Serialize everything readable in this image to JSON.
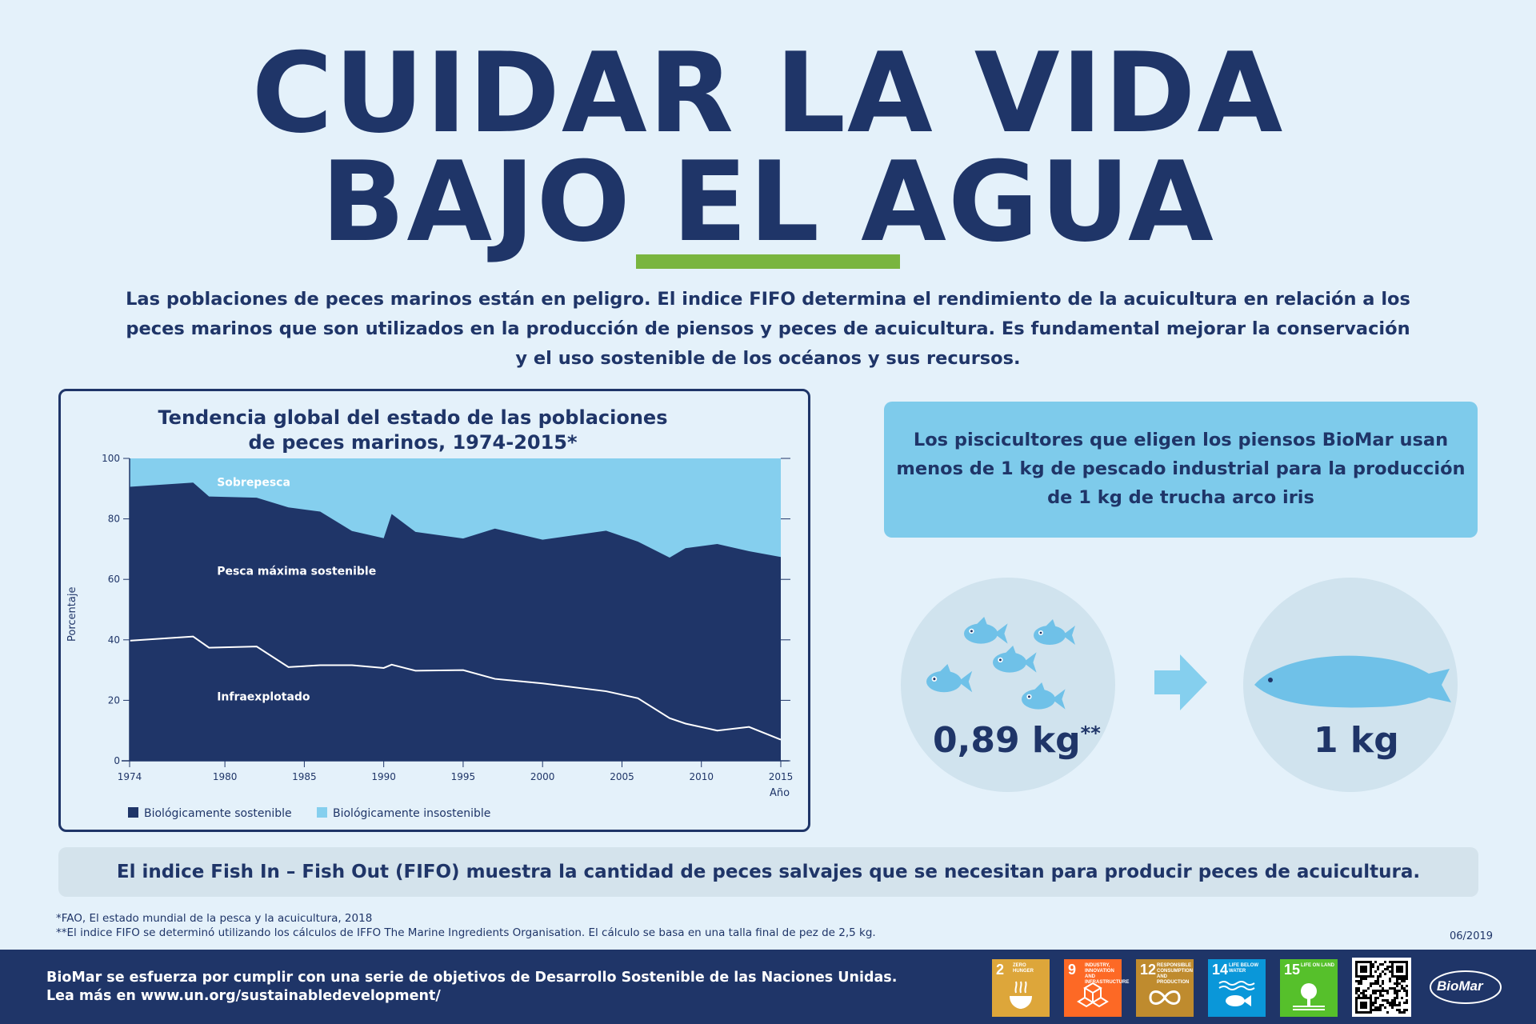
{
  "header": {
    "title_line1": "CUIDAR LA VIDA",
    "title_line2": "BAJO EL AGUA",
    "accent_color": "#79b53f"
  },
  "intro": {
    "text": "Las poblaciones de peces marinos están en peligro. El indice FIFO determina el rendimiento de la acuicultura en relación a los peces marinos que son utilizados en la producción de piensos y peces de acuicultura. Es fundamental mejorar la conservación y el uso sostenible de los océanos y sus recursos."
  },
  "chart_data": {
    "type": "area",
    "title": "Tendencia global del estado de las poblaciones de peces marinos, 1974-2015*",
    "title_line1": "Tendencia global del estado de las poblaciones",
    "title_line2": "de peces marinos, 1974-2015*",
    "xlabel": "Año",
    "ylabel": "Porcentaje",
    "xlim": [
      1974,
      2015
    ],
    "ylim": [
      0,
      100
    ],
    "x_ticks": [
      "1974",
      "1980",
      "1985",
      "1990",
      "1995",
      "2000",
      "2005",
      "2010",
      "2015"
    ],
    "y_ticks": [
      "0",
      "20",
      "40",
      "60",
      "80",
      "100"
    ],
    "x": [
      1974,
      1978,
      1979,
      1982,
      1984,
      1986,
      1988,
      1990,
      1990.5,
      1992,
      1995,
      1997,
      2000,
      2004,
      2006,
      2008,
      2009,
      2011,
      2013,
      2015
    ],
    "sustainable": [
      90.6,
      92.0,
      87.4,
      87.0,
      83.8,
      82.4,
      76.0,
      73.6,
      81.6,
      75.7,
      73.5,
      76.8,
      73.1,
      76.1,
      72.5,
      67.2,
      70.3,
      71.7,
      69.3,
      67.4
    ],
    "underexploited": [
      39.7,
      41.1,
      37.4,
      37.8,
      31.0,
      31.6,
      31.6,
      30.7,
      31.8,
      29.8,
      30.0,
      27.1,
      25.6,
      23.0,
      20.7,
      14.1,
      12.3,
      10.0,
      11.2,
      7.0
    ],
    "region_labels": {
      "overfished": "Sobrepesca",
      "max_sustainable": "Pesca máxima sostenible",
      "underexploited": "Infraexplotado"
    },
    "legend": [
      {
        "label": "Biológicamente sostenible",
        "color": "#1f3568"
      },
      {
        "label": "Biológicamente insostenible",
        "color": "#85cfee"
      }
    ],
    "grid": false
  },
  "panel": {
    "text": "Los piscicultores que eligen los piensos BioMar usan menos de 1 kg de pescado industrial para la producción de 1 kg de trucha arco iris"
  },
  "comparison": {
    "input_value": "0,89 kg",
    "input_mark": "**",
    "output_value": "1 kg",
    "fish_color": "#6fc1e8"
  },
  "fifo": {
    "text": "El indice Fish In – Fish Out (FIFO) muestra la cantidad de peces salvajes que se necesitan para producir peces de acuicultura."
  },
  "footnotes": {
    "note1": "*FAO, El estado mundial de la pesca y la acuicultura, 2018",
    "note2": "**El indice FIFO se determinó utilizando los cálculos de IFFO The Marine Ingredients Organisation. El cálculo se basa en una talla final de pez de 2,5 kg.",
    "date": "06/2019"
  },
  "footer": {
    "line1": "BioMar se esfuerza por cumplir con una serie de objetivos de Desarrollo Sostenible de las Naciones Unidas.",
    "line2": "Lea más en www.un.org/sustainabledevelopment/",
    "sdgs": [
      {
        "num": "2",
        "label": "ZERO HUNGER",
        "color": "#dda63a"
      },
      {
        "num": "9",
        "label": "INDUSTRY, INNOVATION AND INFRASTRUCTURE",
        "color": "#fd6925"
      },
      {
        "num": "12",
        "label": "RESPONSIBLE CONSUMPTION AND PRODUCTION",
        "color": "#bf8b2e"
      },
      {
        "num": "14",
        "label": "LIFE BELOW WATER",
        "color": "#0a97d9"
      },
      {
        "num": "15",
        "label": "LIFE ON LAND",
        "color": "#56c02b"
      }
    ],
    "logo": "BioMar"
  }
}
